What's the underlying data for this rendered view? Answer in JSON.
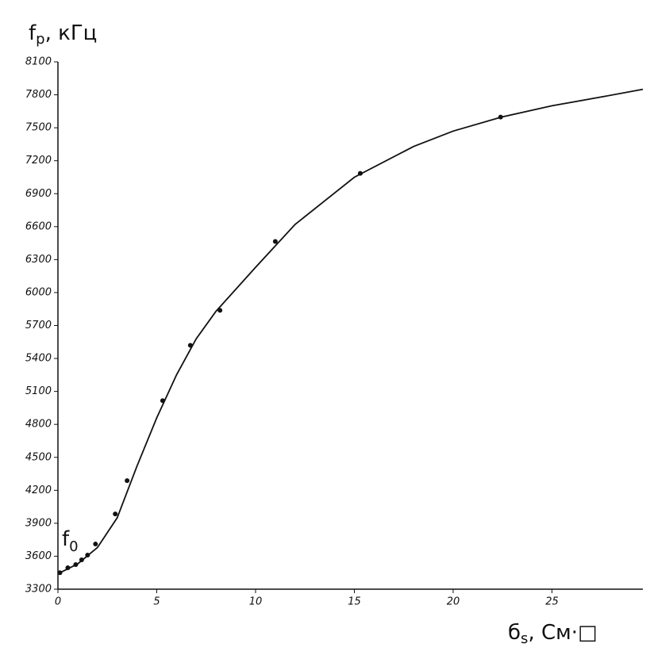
{
  "chart_data": {
    "type": "scatter",
    "ylabel": {
      "main": "f",
      "sub": "p",
      "rest": ", кГц"
    },
    "xlabel": {
      "main": "б",
      "sub": "s",
      "rest": ", См·□"
    },
    "annotation": {
      "main": "f",
      "sub": "0"
    },
    "xlim": [
      0,
      29.6
    ],
    "ylim": [
      3300,
      8100
    ],
    "xticks": [
      0,
      5,
      10,
      15,
      20,
      25
    ],
    "yticks": [
      3300,
      3600,
      3900,
      4200,
      4500,
      4800,
      5100,
      5400,
      5700,
      6000,
      6300,
      6600,
      6900,
      7200,
      7500,
      7800,
      8100
    ],
    "color": "#111111",
    "points": {
      "x": [
        0.1,
        0.5,
        0.9,
        1.2,
        1.5,
        1.9,
        2.9,
        3.5,
        5.3,
        6.7,
        8.2,
        11.0,
        15.3,
        22.4
      ],
      "y": [
        3450,
        3495,
        3524,
        3567,
        3610,
        3711,
        3985,
        4288,
        5016,
        5520,
        5838,
        6465,
        7085,
        7597
      ]
    },
    "curve": {
      "x": [
        0,
        1,
        2,
        3,
        4,
        5,
        6,
        7,
        8,
        10,
        12,
        15,
        18,
        20,
        22.5,
        25,
        27.5,
        29.6
      ],
      "y": [
        3440,
        3530,
        3680,
        3950,
        4420,
        4860,
        5250,
        5580,
        5830,
        6230,
        6620,
        7050,
        7330,
        7470,
        7600,
        7700,
        7780,
        7850
      ]
    }
  }
}
